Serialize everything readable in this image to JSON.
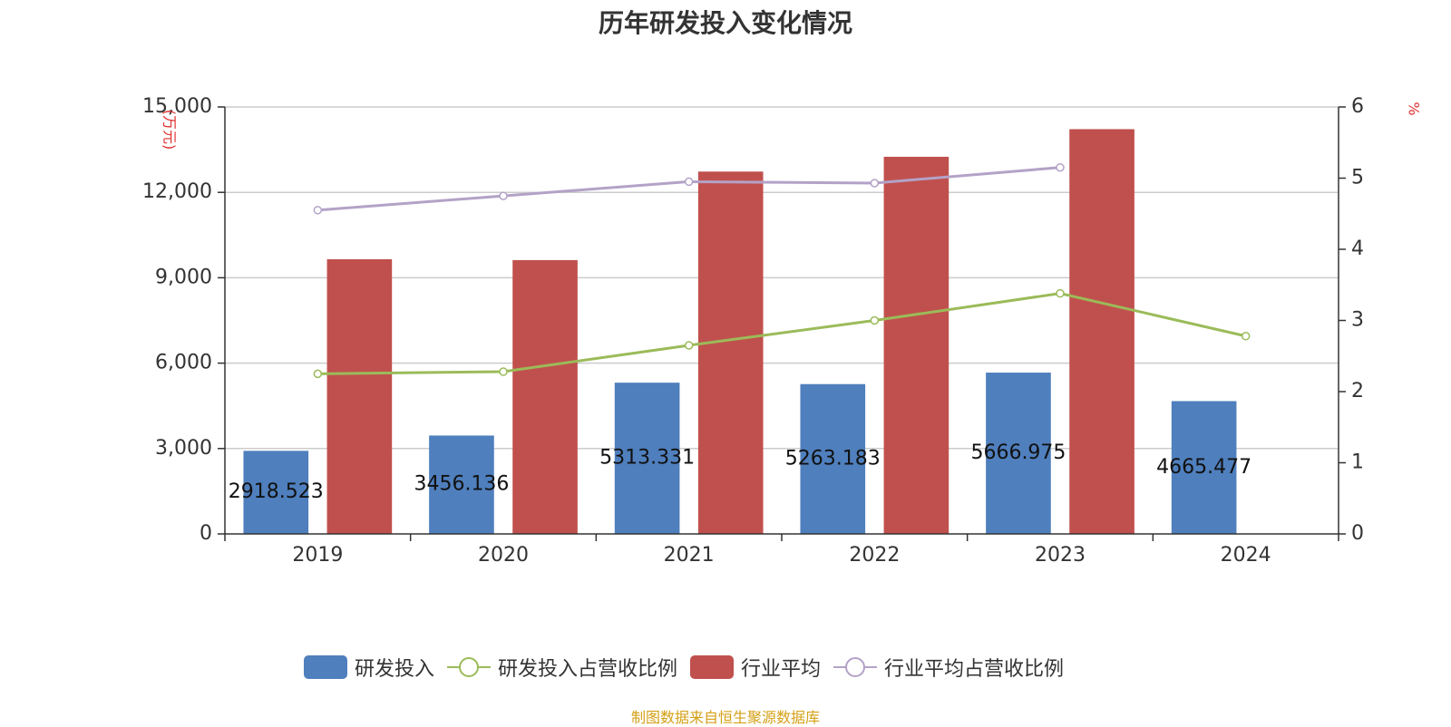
{
  "chart_data": {
    "type": "bar",
    "title": "历年研发投入变化情况",
    "categories": [
      "2019",
      "2020",
      "2021",
      "2022",
      "2023",
      "2024"
    ],
    "y_left": {
      "unit_label": "(万元)",
      "ylim": [
        0,
        15000
      ],
      "ticks": [
        "0",
        "3,000",
        "6,000",
        "9,000",
        "12,000",
        "15,000"
      ],
      "tick_values": [
        0,
        3000,
        6000,
        9000,
        12000,
        15000
      ]
    },
    "y_right": {
      "unit_label": "%",
      "ylim": [
        0,
        6
      ],
      "ticks": [
        "0",
        "1",
        "2",
        "3",
        "4",
        "5",
        "6"
      ],
      "tick_values": [
        0,
        1,
        2,
        3,
        4,
        5,
        6
      ]
    },
    "grid": true,
    "legend_position": "bottom",
    "series": [
      {
        "name": "研发投入",
        "kind": "bar",
        "axis": "left",
        "color": "#4f7fbd",
        "values": [
          2918.523,
          3456.136,
          5313.331,
          5263.183,
          5666.975,
          4665.477
        ],
        "labels": [
          "2918.523",
          "3456.136",
          "5313.331",
          "5263.183",
          "5666.975",
          "4665.477"
        ]
      },
      {
        "name": "研发投入占营收比例",
        "kind": "line",
        "axis": "right",
        "color": "#9bbb59",
        "values": [
          2.25,
          2.28,
          2.65,
          3.0,
          3.38,
          2.78
        ]
      },
      {
        "name": "行业平均",
        "kind": "bar",
        "axis": "left",
        "color": "#c0504d",
        "values": [
          9650,
          9620,
          12730,
          13250,
          14220,
          null
        ]
      },
      {
        "name": "行业平均占营收比例",
        "kind": "line",
        "axis": "right",
        "color": "#b3a2c7",
        "values": [
          4.55,
          4.75,
          4.95,
          4.93,
          5.15,
          null
        ]
      }
    ]
  },
  "source_note": "制图数据来自恒生聚源数据库"
}
